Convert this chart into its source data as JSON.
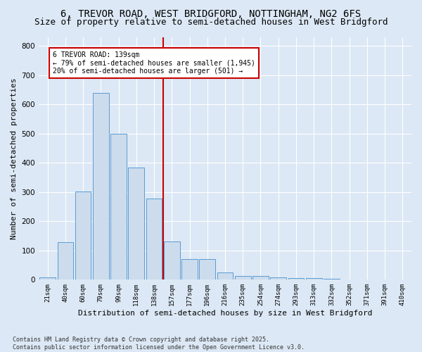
{
  "title": "6, TREVOR ROAD, WEST BRIDGFORD, NOTTINGHAM, NG2 6FS",
  "subtitle": "Size of property relative to semi-detached houses in West Bridgford",
  "xlabel": "Distribution of semi-detached houses by size in West Bridgford",
  "ylabel": "Number of semi-detached properties",
  "categories": [
    "21sqm",
    "40sqm",
    "60sqm",
    "79sqm",
    "99sqm",
    "118sqm",
    "138sqm",
    "157sqm",
    "177sqm",
    "196sqm",
    "216sqm",
    "235sqm",
    "254sqm",
    "274sqm",
    "293sqm",
    "313sqm",
    "332sqm",
    "352sqm",
    "371sqm",
    "391sqm",
    "410sqm"
  ],
  "bar_heights": [
    8,
    128,
    302,
    638,
    500,
    383,
    278,
    130,
    70,
    70,
    25,
    12,
    12,
    8,
    5,
    5,
    3,
    0,
    0,
    0,
    0
  ],
  "bar_color": "#ccdcec",
  "bar_edge_color": "#5b9bd5",
  "vline_x": 6.5,
  "vline_color": "#cc0000",
  "annotation_text": "6 TREVOR ROAD: 139sqm\n← 79% of semi-detached houses are smaller (1,945)\n20% of semi-detached houses are larger (501) →",
  "annotation_box_color": "#ffffff",
  "annotation_box_edge_color": "#cc0000",
  "ylim": [
    0,
    830
  ],
  "yticks": [
    0,
    100,
    200,
    300,
    400,
    500,
    600,
    700,
    800
  ],
  "background_color": "#dce8f5",
  "footer_text": "Contains HM Land Registry data © Crown copyright and database right 2025.\nContains public sector information licensed under the Open Government Licence v3.0.",
  "title_fontsize": 10,
  "subtitle_fontsize": 9
}
